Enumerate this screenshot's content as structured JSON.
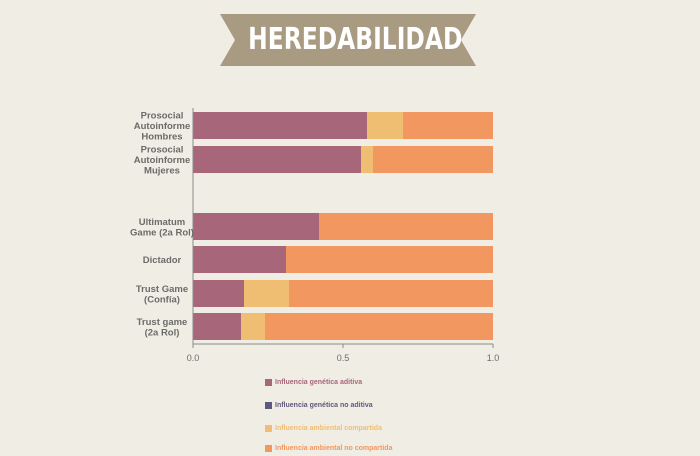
{
  "header": {
    "title": "HEREDABILIDAD"
  },
  "colors": {
    "background": "#f0ede4",
    "banner": "#a99a82",
    "genetic_additive": "#a8667a",
    "genetic_non_additive": "#5e5a7e",
    "shared_environment": "#f0be72",
    "non_shared_environment": "#f2975f",
    "axis": "#8a8a8a",
    "label": "#6b6b6b"
  },
  "chart_data": {
    "type": "bar",
    "orientation": "horizontal",
    "stacked": true,
    "categories": [
      [
        "Prosocial",
        "Autoinforme",
        "Hombres"
      ],
      [
        "Prosocial",
        "Autoinforme",
        "Mujeres"
      ],
      [],
      [
        "Ultimatum",
        "Game (2a Rol)"
      ],
      [
        "Dictador"
      ],
      [
        "Trust Game",
        "(Confía)"
      ],
      [
        "Trust game",
        "(2a Rol)"
      ]
    ],
    "series": [
      {
        "name": "Influencia genética aditiva",
        "color_key": "genetic_additive",
        "values": [
          0.58,
          0.56,
          null,
          0.42,
          0.31,
          0.17,
          0.16
        ]
      },
      {
        "name": "Influencia genética no aditiva",
        "color_key": "genetic_non_additive",
        "values": [
          0,
          0,
          null,
          0,
          0,
          0,
          0
        ]
      },
      {
        "name": "Influencia ambiental compartida",
        "color_key": "shared_environment",
        "values": [
          0.12,
          0.04,
          null,
          0,
          0,
          0.15,
          0.08
        ]
      },
      {
        "name": "Influencia ambiental no compartida",
        "color_key": "non_shared_environment",
        "values": [
          0.3,
          0.4,
          null,
          0.58,
          0.69,
          0.68,
          0.76
        ]
      }
    ],
    "xlim": [
      0,
      1
    ],
    "xticks": [
      "0.0",
      "0.5",
      "1.0"
    ],
    "xlabel": "",
    "ylabel": "",
    "grid": false,
    "legend_position": "bottom"
  }
}
